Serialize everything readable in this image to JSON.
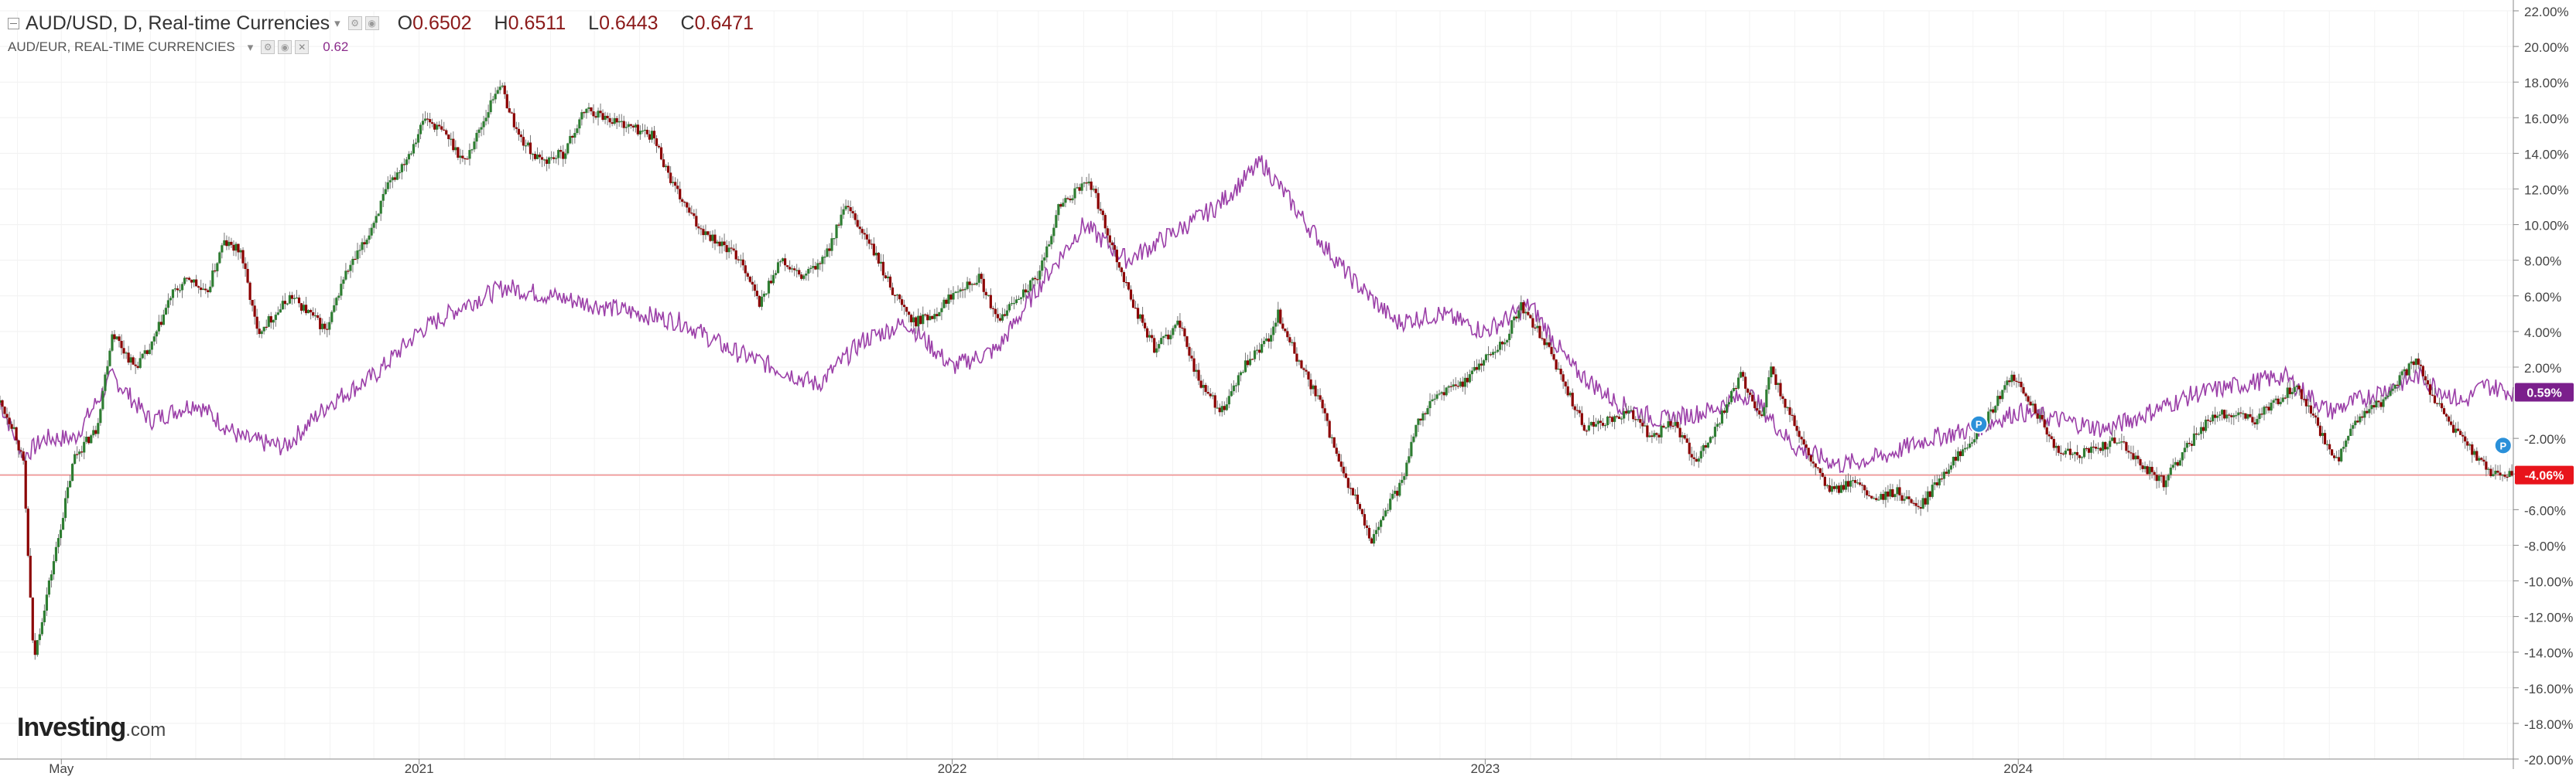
{
  "header": {
    "symbol_line": "AUD/USD, D, Real-time Currencies",
    "ohlc": [
      {
        "label": "O",
        "value": "0.6502"
      },
      {
        "label": "H",
        "value": "0.6511"
      },
      {
        "label": "L",
        "value": "0.6443"
      },
      {
        "label": "C",
        "value": "0.6471"
      }
    ],
    "indicator_name": "AUD/EUR, REAL-TIME CURRENCIES",
    "indicator_value": "0.62"
  },
  "watermark": {
    "brand": "Investing",
    "suffix": ".com"
  },
  "chart_data": {
    "type": "line",
    "ylim": [
      -20,
      22
    ],
    "yticks": [
      22,
      20,
      18,
      16,
      14,
      12,
      10,
      8,
      6,
      4,
      2,
      -2,
      -4,
      -6,
      -8,
      -10,
      -12,
      -14,
      -16,
      -18,
      -20
    ],
    "ytick_labels": [
      "22.00%",
      "20.00%",
      "18.00%",
      "16.00%",
      "14.00%",
      "12.00%",
      "10.00%",
      "8.00%",
      "6.00%",
      "4.00%",
      "2.00%",
      "-2.00%",
      "-4.00%",
      "-6.00%",
      "-8.00%",
      "-10.00%",
      "-12.00%",
      "-14.00%",
      "-16.00%",
      "-18.00%",
      "-20.00%"
    ],
    "xlim": [
      "2020-03-20",
      "2024-12-05"
    ],
    "xticks": [
      {
        "date": "2020-05-01",
        "label": "May"
      },
      {
        "date": "2021-01-01",
        "label": "2021"
      },
      {
        "date": "2022-01-01",
        "label": "2022"
      },
      {
        "date": "2023-01-01",
        "label": "2023"
      },
      {
        "date": "2024-01-01",
        "label": "2024"
      }
    ],
    "baseline_pct": -4.06,
    "series": [
      {
        "values_kind": "percent change",
        "color_up": "#2e7d32",
        "color_down": "#8b0000",
        "points": [
          [
            "2020-03-20",
            0.0
          ],
          [
            "2020-03-30",
            -1.5
          ],
          [
            "2020-04-05",
            -3.5
          ],
          [
            "2020-04-12",
            -14.5
          ],
          [
            "2020-04-18",
            -12.0
          ],
          [
            "2020-04-28",
            -8.0
          ],
          [
            "2020-05-10",
            -3.0
          ],
          [
            "2020-05-25",
            -1.5
          ],
          [
            "2020-06-05",
            4.0
          ],
          [
            "2020-06-20",
            2.0
          ],
          [
            "2020-07-01",
            3.0
          ],
          [
            "2020-07-15",
            6.0
          ],
          [
            "2020-07-28",
            7.0
          ],
          [
            "2020-08-08",
            6.0
          ],
          [
            "2020-08-20",
            9.0
          ],
          [
            "2020-09-01",
            8.5
          ],
          [
            "2020-09-12",
            4.0
          ],
          [
            "2020-09-25",
            5.0
          ],
          [
            "2020-10-05",
            6.0
          ],
          [
            "2020-10-18",
            5.0
          ],
          [
            "2020-10-30",
            4.0
          ],
          [
            "2020-11-10",
            7.0
          ],
          [
            "2020-11-25",
            9.0
          ],
          [
            "2020-12-10",
            12.0
          ],
          [
            "2020-12-25",
            14.0
          ],
          [
            "2021-01-05",
            16.0
          ],
          [
            "2021-01-20",
            15.0
          ],
          [
            "2021-02-01",
            13.5
          ],
          [
            "2021-02-15",
            16.0
          ],
          [
            "2021-02-25",
            18.0
          ],
          [
            "2021-03-10",
            15.0
          ],
          [
            "2021-03-25",
            13.5
          ],
          [
            "2021-04-10",
            14.0
          ],
          [
            "2021-04-25",
            16.5
          ],
          [
            "2021-05-10",
            16.0
          ],
          [
            "2021-05-25",
            15.5
          ],
          [
            "2021-06-10",
            15.0
          ],
          [
            "2021-06-25",
            12.0
          ],
          [
            "2021-07-10",
            10.0
          ],
          [
            "2021-07-25",
            9.0
          ],
          [
            "2021-08-10",
            8.0
          ],
          [
            "2021-08-22",
            5.5
          ],
          [
            "2021-09-05",
            8.0
          ],
          [
            "2021-09-20",
            7.0
          ],
          [
            "2021-10-05",
            8.0
          ],
          [
            "2021-10-20",
            11.0
          ],
          [
            "2021-11-05",
            9.0
          ],
          [
            "2021-11-20",
            6.5
          ],
          [
            "2021-12-05",
            4.5
          ],
          [
            "2021-12-20",
            5.0
          ],
          [
            "2022-01-05",
            6.5
          ],
          [
            "2022-01-20",
            7.0
          ],
          [
            "2022-02-01",
            4.5
          ],
          [
            "2022-02-15",
            6.0
          ],
          [
            "2022-03-01",
            7.0
          ],
          [
            "2022-03-15",
            11.0
          ],
          [
            "2022-04-05",
            12.5
          ],
          [
            "2022-04-20",
            9.0
          ],
          [
            "2022-05-05",
            5.5
          ],
          [
            "2022-05-20",
            3.0
          ],
          [
            "2022-06-05",
            4.5
          ],
          [
            "2022-06-20",
            1.0
          ],
          [
            "2022-07-05",
            -0.5
          ],
          [
            "2022-07-20",
            2.0
          ],
          [
            "2022-08-05",
            3.5
          ],
          [
            "2022-08-12",
            5.0
          ],
          [
            "2022-08-25",
            2.5
          ],
          [
            "2022-09-10",
            0.0
          ],
          [
            "2022-09-25",
            -4.0
          ],
          [
            "2022-10-05",
            -5.5
          ],
          [
            "2022-10-14",
            -7.8
          ],
          [
            "2022-10-25",
            -6.0
          ],
          [
            "2022-11-05",
            -4.5
          ],
          [
            "2022-11-15",
            -1.0
          ],
          [
            "2022-11-30",
            0.5
          ],
          [
            "2022-12-15",
            1.0
          ],
          [
            "2023-01-01",
            2.5
          ],
          [
            "2023-01-15",
            3.5
          ],
          [
            "2023-01-25",
            5.5
          ],
          [
            "2023-02-10",
            3.5
          ],
          [
            "2023-02-25",
            1.0
          ],
          [
            "2023-03-10",
            -1.5
          ],
          [
            "2023-03-25",
            -1.0
          ],
          [
            "2023-04-10",
            -0.5
          ],
          [
            "2023-04-25",
            -2.0
          ],
          [
            "2023-05-10",
            -1.0
          ],
          [
            "2023-05-25",
            -3.5
          ],
          [
            "2023-06-10",
            -1.0
          ],
          [
            "2023-06-25",
            1.5
          ],
          [
            "2023-07-10",
            -1.0
          ],
          [
            "2023-07-15",
            2.0
          ],
          [
            "2023-07-25",
            0.0
          ],
          [
            "2023-08-10",
            -3.0
          ],
          [
            "2023-08-25",
            -5.0
          ],
          [
            "2023-09-10",
            -4.5
          ],
          [
            "2023-09-25",
            -5.5
          ],
          [
            "2023-10-10",
            -5.0
          ],
          [
            "2023-10-25",
            -6.0
          ],
          [
            "2023-11-10",
            -4.0
          ],
          [
            "2023-11-25",
            -2.5
          ],
          [
            "2023-12-10",
            -1.0
          ],
          [
            "2023-12-28",
            1.5
          ],
          [
            "2024-01-10",
            0.0
          ],
          [
            "2024-01-25",
            -2.5
          ],
          [
            "2024-02-10",
            -3.0
          ],
          [
            "2024-02-25",
            -2.5
          ],
          [
            "2024-03-10",
            -2.0
          ],
          [
            "2024-03-25",
            -3.5
          ],
          [
            "2024-04-10",
            -4.5
          ],
          [
            "2024-04-25",
            -2.5
          ],
          [
            "2024-05-10",
            -1.0
          ],
          [
            "2024-05-25",
            -0.5
          ],
          [
            "2024-06-10",
            -1.0
          ],
          [
            "2024-06-25",
            0.0
          ],
          [
            "2024-07-10",
            1.0
          ],
          [
            "2024-07-25",
            -1.5
          ],
          [
            "2024-08-05",
            -3.5
          ],
          [
            "2024-08-20",
            -1.0
          ],
          [
            "2024-09-05",
            0.0
          ],
          [
            "2024-09-20",
            1.5
          ],
          [
            "2024-09-30",
            2.5
          ],
          [
            "2024-10-10",
            0.5
          ],
          [
            "2024-10-25",
            -1.5
          ],
          [
            "2024-11-10",
            -3.0
          ],
          [
            "2024-11-20",
            -4.0
          ],
          [
            "2024-12-05",
            -4.06
          ]
        ]
      },
      {
        "values_kind": "percent change",
        "color": "#9b3fa8",
        "points": [
          [
            "2020-03-20",
            0.0
          ],
          [
            "2020-04-05",
            -3.0
          ],
          [
            "2020-04-20",
            -2.0
          ],
          [
            "2020-05-10",
            -2.0
          ],
          [
            "2020-06-05",
            1.5
          ],
          [
            "2020-07-01",
            -1.0
          ],
          [
            "2020-08-01",
            0.0
          ],
          [
            "2020-09-01",
            -2.0
          ],
          [
            "2020-10-01",
            -2.5
          ],
          [
            "2020-11-01",
            0.0
          ],
          [
            "2020-12-01",
            1.5
          ],
          [
            "2021-01-01",
            4.0
          ],
          [
            "2021-02-01",
            5.5
          ],
          [
            "2021-03-01",
            6.5
          ],
          [
            "2021-04-01",
            6.0
          ],
          [
            "2021-05-01",
            5.5
          ],
          [
            "2021-06-01",
            5.0
          ],
          [
            "2021-07-01",
            4.5
          ],
          [
            "2021-08-01",
            3.0
          ],
          [
            "2021-09-01",
            2.0
          ],
          [
            "2021-10-01",
            1.0
          ],
          [
            "2021-11-01",
            3.5
          ],
          [
            "2021-12-01",
            4.5
          ],
          [
            "2022-01-01",
            2.0
          ],
          [
            "2022-02-01",
            3.0
          ],
          [
            "2022-03-01",
            6.5
          ],
          [
            "2022-04-01",
            10.0
          ],
          [
            "2022-05-01",
            8.0
          ],
          [
            "2022-06-01",
            9.5
          ],
          [
            "2022-07-01",
            11.0
          ],
          [
            "2022-08-01",
            13.5
          ],
          [
            "2022-09-01",
            10.0
          ],
          [
            "2022-10-01",
            7.0
          ],
          [
            "2022-11-01",
            4.5
          ],
          [
            "2022-12-01",
            5.0
          ],
          [
            "2023-01-01",
            4.0
          ],
          [
            "2023-02-01",
            5.5
          ],
          [
            "2023-03-01",
            2.0
          ],
          [
            "2023-04-01",
            0.0
          ],
          [
            "2023-05-01",
            -1.0
          ],
          [
            "2023-06-01",
            -0.5
          ],
          [
            "2023-07-01",
            0.5
          ],
          [
            "2023-08-01",
            -2.5
          ],
          [
            "2023-09-01",
            -3.5
          ],
          [
            "2023-10-01",
            -3.0
          ],
          [
            "2023-11-01",
            -2.0
          ],
          [
            "2023-12-01",
            -1.5
          ],
          [
            "2024-01-01",
            -0.5
          ],
          [
            "2024-02-01",
            -1.0
          ],
          [
            "2024-03-01",
            -1.5
          ],
          [
            "2024-04-01",
            -0.5
          ],
          [
            "2024-05-01",
            0.5
          ],
          [
            "2024-06-01",
            1.0
          ],
          [
            "2024-07-01",
            1.5
          ],
          [
            "2024-08-01",
            -0.5
          ],
          [
            "2024-09-01",
            0.5
          ],
          [
            "2024-10-01",
            1.5
          ],
          [
            "2024-11-01",
            0.0
          ],
          [
            "2024-11-15",
            1.0
          ],
          [
            "2024-12-05",
            0.59
          ]
        ]
      }
    ],
    "price_tags": [
      {
        "value_pct": 0.59,
        "label": "0.59%",
        "color": "#7b1f8c"
      },
      {
        "value_pct": -4.06,
        "label": "-4.06%",
        "color": "#e8141b"
      }
    ],
    "event_markers": [
      {
        "date": "2023-12-05",
        "value_pct": -1.2,
        "label": "P",
        "color": "#2a90d9"
      },
      {
        "date": "2024-11-28",
        "value_pct": -2.4,
        "label": "P",
        "color": "#2a90d9"
      }
    ]
  }
}
